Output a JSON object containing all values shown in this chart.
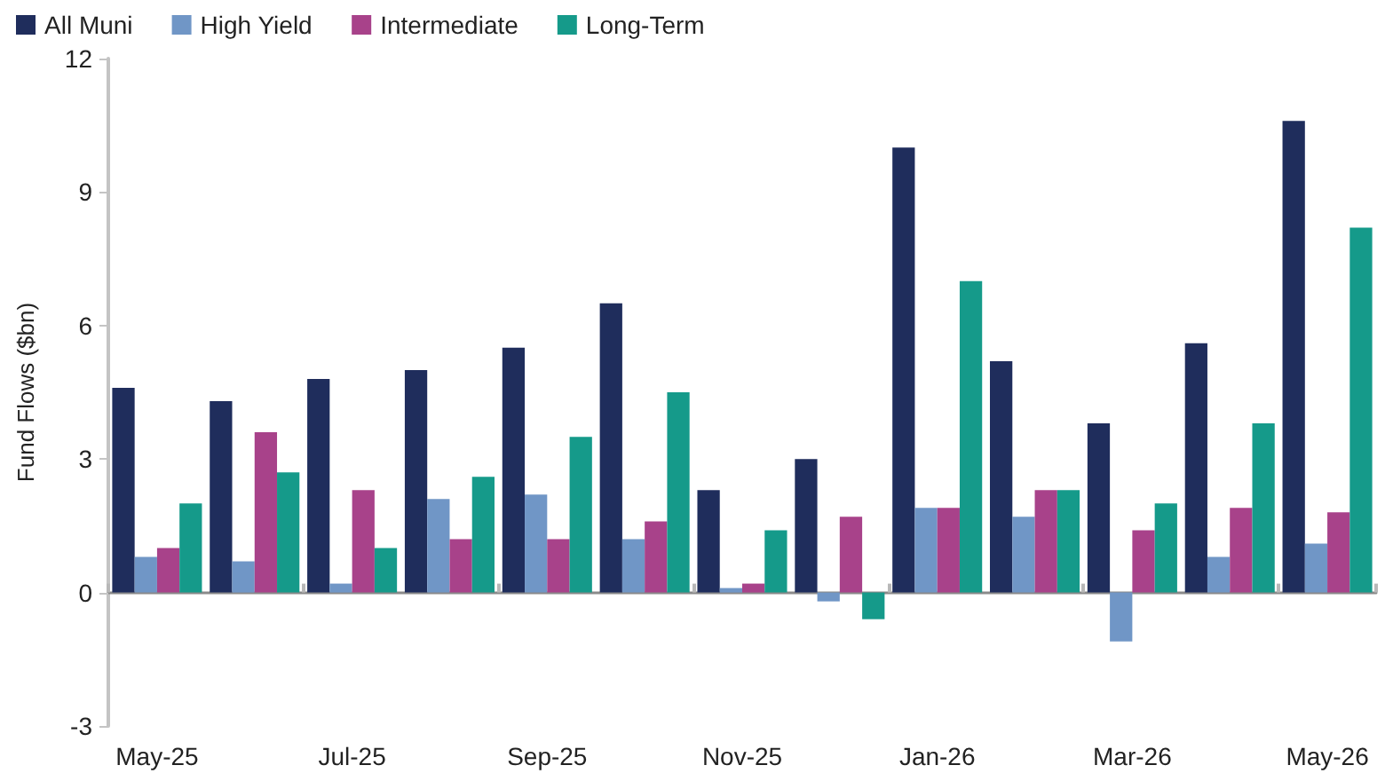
{
  "chart_data": {
    "type": "bar",
    "ylabel": "Fund Flows ($bn)",
    "categories": [
      "May-25",
      null,
      "Jul-25",
      null,
      "Sep-25",
      null,
      "Nov-25",
      null,
      "Jan-26",
      null,
      "Mar-26",
      null,
      "May-26"
    ],
    "series": [
      {
        "name": "All Muni",
        "color": "#1f2d5c",
        "values": [
          4.6,
          4.3,
          4.8,
          5.0,
          5.5,
          6.5,
          2.3,
          3.0,
          10.0,
          5.2,
          3.8,
          5.6,
          10.6
        ]
      },
      {
        "name": "High Yield",
        "color": "#7096c6",
        "values": [
          0.8,
          0.7,
          0.2,
          2.1,
          2.2,
          1.2,
          0.1,
          -0.2,
          1.9,
          1.7,
          -1.1,
          0.8,
          1.1
        ]
      },
      {
        "name": "Intermediate",
        "color": "#a8428a",
        "values": [
          1.0,
          3.6,
          2.3,
          1.2,
          1.2,
          1.6,
          0.2,
          1.7,
          1.9,
          2.3,
          1.4,
          1.9,
          1.8
        ]
      },
      {
        "name": "Long-Term",
        "color": "#159a8a",
        "values": [
          2.0,
          2.7,
          1.0,
          2.6,
          3.5,
          4.5,
          1.4,
          -0.6,
          7.0,
          2.3,
          2.0,
          3.8,
          8.2
        ]
      }
    ],
    "ylim": [
      -3,
      12
    ],
    "yticks": [
      -3,
      0,
      3,
      6,
      9,
      12
    ],
    "legend": "top left"
  }
}
